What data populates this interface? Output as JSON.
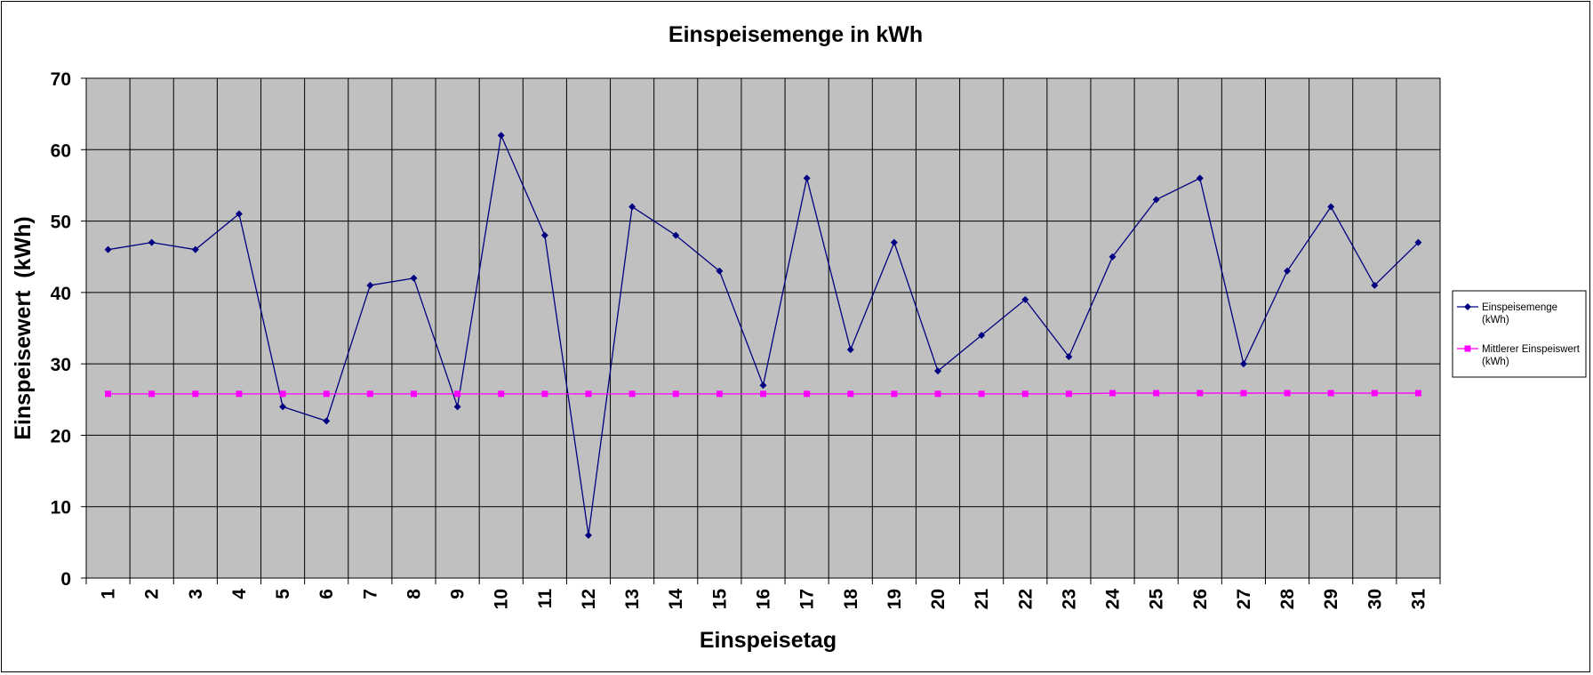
{
  "chart_data": {
    "type": "line",
    "title": "Einspeisemenge in kWh",
    "xlabel": "Einspeisetag",
    "ylabel": "Einspeisewert  (kWh)",
    "categories": [
      "1",
      "2",
      "3",
      "4",
      "5",
      "6",
      "7",
      "8",
      "9",
      "10",
      "11",
      "12",
      "13",
      "14",
      "15",
      "16",
      "17",
      "18",
      "19",
      "20",
      "21",
      "22",
      "23",
      "24",
      "25",
      "26",
      "27",
      "28",
      "29",
      "30",
      "31"
    ],
    "ylim": [
      0,
      70
    ],
    "yticks": [
      "0",
      "10",
      "20",
      "30",
      "40",
      "50",
      "60",
      "70"
    ],
    "grid": true,
    "legend_position": "right",
    "plot_background": "#c0c0c0",
    "series": [
      {
        "name": "Einspeisemenge (kWh)",
        "legend_lines": [
          "Einspeisemenge",
          "(kWh)"
        ],
        "color": "#000080",
        "marker": "diamond",
        "values": [
          46,
          47,
          46,
          51,
          24,
          22,
          41,
          42,
          24,
          62,
          48,
          6,
          52,
          48,
          43,
          27,
          56,
          32,
          47,
          29,
          34,
          39,
          31,
          45,
          53,
          56,
          30,
          43,
          52,
          41,
          47
        ]
      },
      {
        "name": "Mittlerer Einspeiswert (kWh)",
        "legend_lines": [
          "Mittlerer Einspeiswert",
          "(kWh)"
        ],
        "color": "#ff00ff",
        "marker": "square",
        "values": [
          25.8,
          25.8,
          25.8,
          25.8,
          25.8,
          25.8,
          25.8,
          25.8,
          25.8,
          25.8,
          25.8,
          25.8,
          25.8,
          25.8,
          25.8,
          25.8,
          25.8,
          25.8,
          25.8,
          25.8,
          25.8,
          25.8,
          25.8,
          25.9,
          25.9,
          25.9,
          25.9,
          25.9,
          25.9,
          25.9,
          25.9
        ]
      }
    ]
  }
}
